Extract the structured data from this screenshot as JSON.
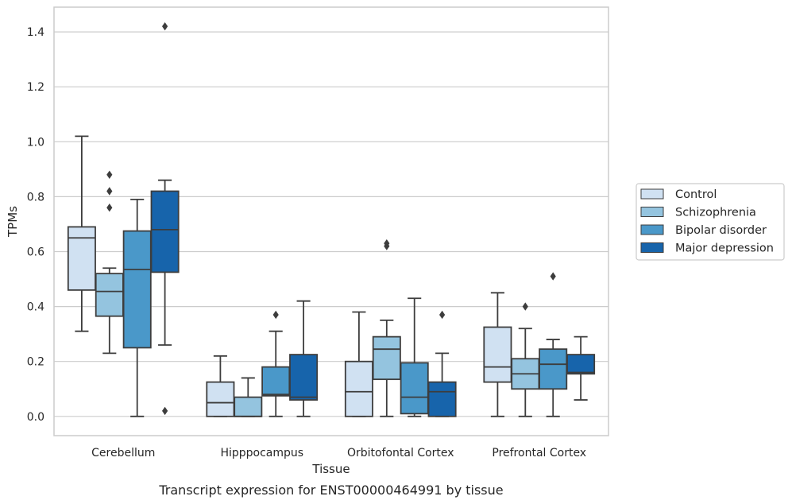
{
  "chart_data": {
    "type": "box",
    "xlabel": "Tissue",
    "ylabel": "TPMs",
    "caption": "Transcript expression for ENST00000464991 by tissue",
    "ylim": [
      -0.07,
      1.49
    ],
    "yticks": [
      "0.0",
      "0.2",
      "0.4",
      "0.6",
      "0.8",
      "1.0",
      "1.2",
      "1.4"
    ],
    "grid": "horizontal",
    "legend_position": "right",
    "categories": [
      "Cerebellum",
      "Hipppocampus",
      "Orbitofontal Cortex",
      "Prefrontal Cortex"
    ],
    "series": [
      {
        "name": "Control",
        "color": "#d0e1f2",
        "boxes": [
          {
            "whislo": 0.31,
            "q1": 0.46,
            "med": 0.65,
            "q3": 0.69,
            "whishi": 1.02,
            "fliers": []
          },
          {
            "whislo": 0.0,
            "q1": 0.0,
            "med": 0.05,
            "q3": 0.125,
            "whishi": 0.22,
            "fliers": []
          },
          {
            "whislo": 0.0,
            "q1": 0.0,
            "med": 0.09,
            "q3": 0.2,
            "whishi": 0.38,
            "fliers": []
          },
          {
            "whislo": 0.0,
            "q1": 0.125,
            "med": 0.18,
            "q3": 0.325,
            "whishi": 0.45,
            "fliers": []
          }
        ]
      },
      {
        "name": "Schizophrenia",
        "color": "#94c4df",
        "boxes": [
          {
            "whislo": 0.23,
            "q1": 0.365,
            "med": 0.455,
            "q3": 0.52,
            "whishi": 0.54,
            "fliers": [
              0.88,
              0.82,
              0.76
            ]
          },
          {
            "whislo": 0.0,
            "q1": 0.0,
            "med": 0.0,
            "q3": 0.07,
            "whishi": 0.14,
            "fliers": []
          },
          {
            "whislo": 0.0,
            "q1": 0.135,
            "med": 0.245,
            "q3": 0.29,
            "whishi": 0.35,
            "fliers": [
              0.63,
              0.62
            ]
          },
          {
            "whislo": 0.0,
            "q1": 0.1,
            "med": 0.155,
            "q3": 0.21,
            "whishi": 0.32,
            "fliers": [
              0.4
            ]
          }
        ]
      },
      {
        "name": "Bipolar disorder",
        "color": "#4a98c9",
        "boxes": [
          {
            "whislo": 0.0,
            "q1": 0.25,
            "med": 0.535,
            "q3": 0.675,
            "whishi": 0.79,
            "fliers": []
          },
          {
            "whislo": 0.0,
            "q1": 0.075,
            "med": 0.08,
            "q3": 0.18,
            "whishi": 0.31,
            "fliers": [
              0.37
            ]
          },
          {
            "whislo": 0.0,
            "q1": 0.01,
            "med": 0.07,
            "q3": 0.195,
            "whishi": 0.43,
            "fliers": []
          },
          {
            "whislo": 0.0,
            "q1": 0.1,
            "med": 0.19,
            "q3": 0.245,
            "whishi": 0.28,
            "fliers": [
              0.51
            ]
          }
        ]
      },
      {
        "name": "Major depression",
        "color": "#1764ab",
        "boxes": [
          {
            "whislo": 0.26,
            "q1": 0.525,
            "med": 0.68,
            "q3": 0.82,
            "whishi": 0.86,
            "fliers": [
              1.42,
              0.02
            ]
          },
          {
            "whislo": 0.0,
            "q1": 0.06,
            "med": 0.07,
            "q3": 0.225,
            "whishi": 0.42,
            "fliers": []
          },
          {
            "whislo": 0.0,
            "q1": 0.0,
            "med": 0.09,
            "q3": 0.125,
            "whishi": 0.23,
            "fliers": [
              0.37
            ]
          },
          {
            "whislo": 0.06,
            "q1": 0.155,
            "med": 0.16,
            "q3": 0.225,
            "whishi": 0.29,
            "fliers": []
          }
        ]
      }
    ]
  }
}
